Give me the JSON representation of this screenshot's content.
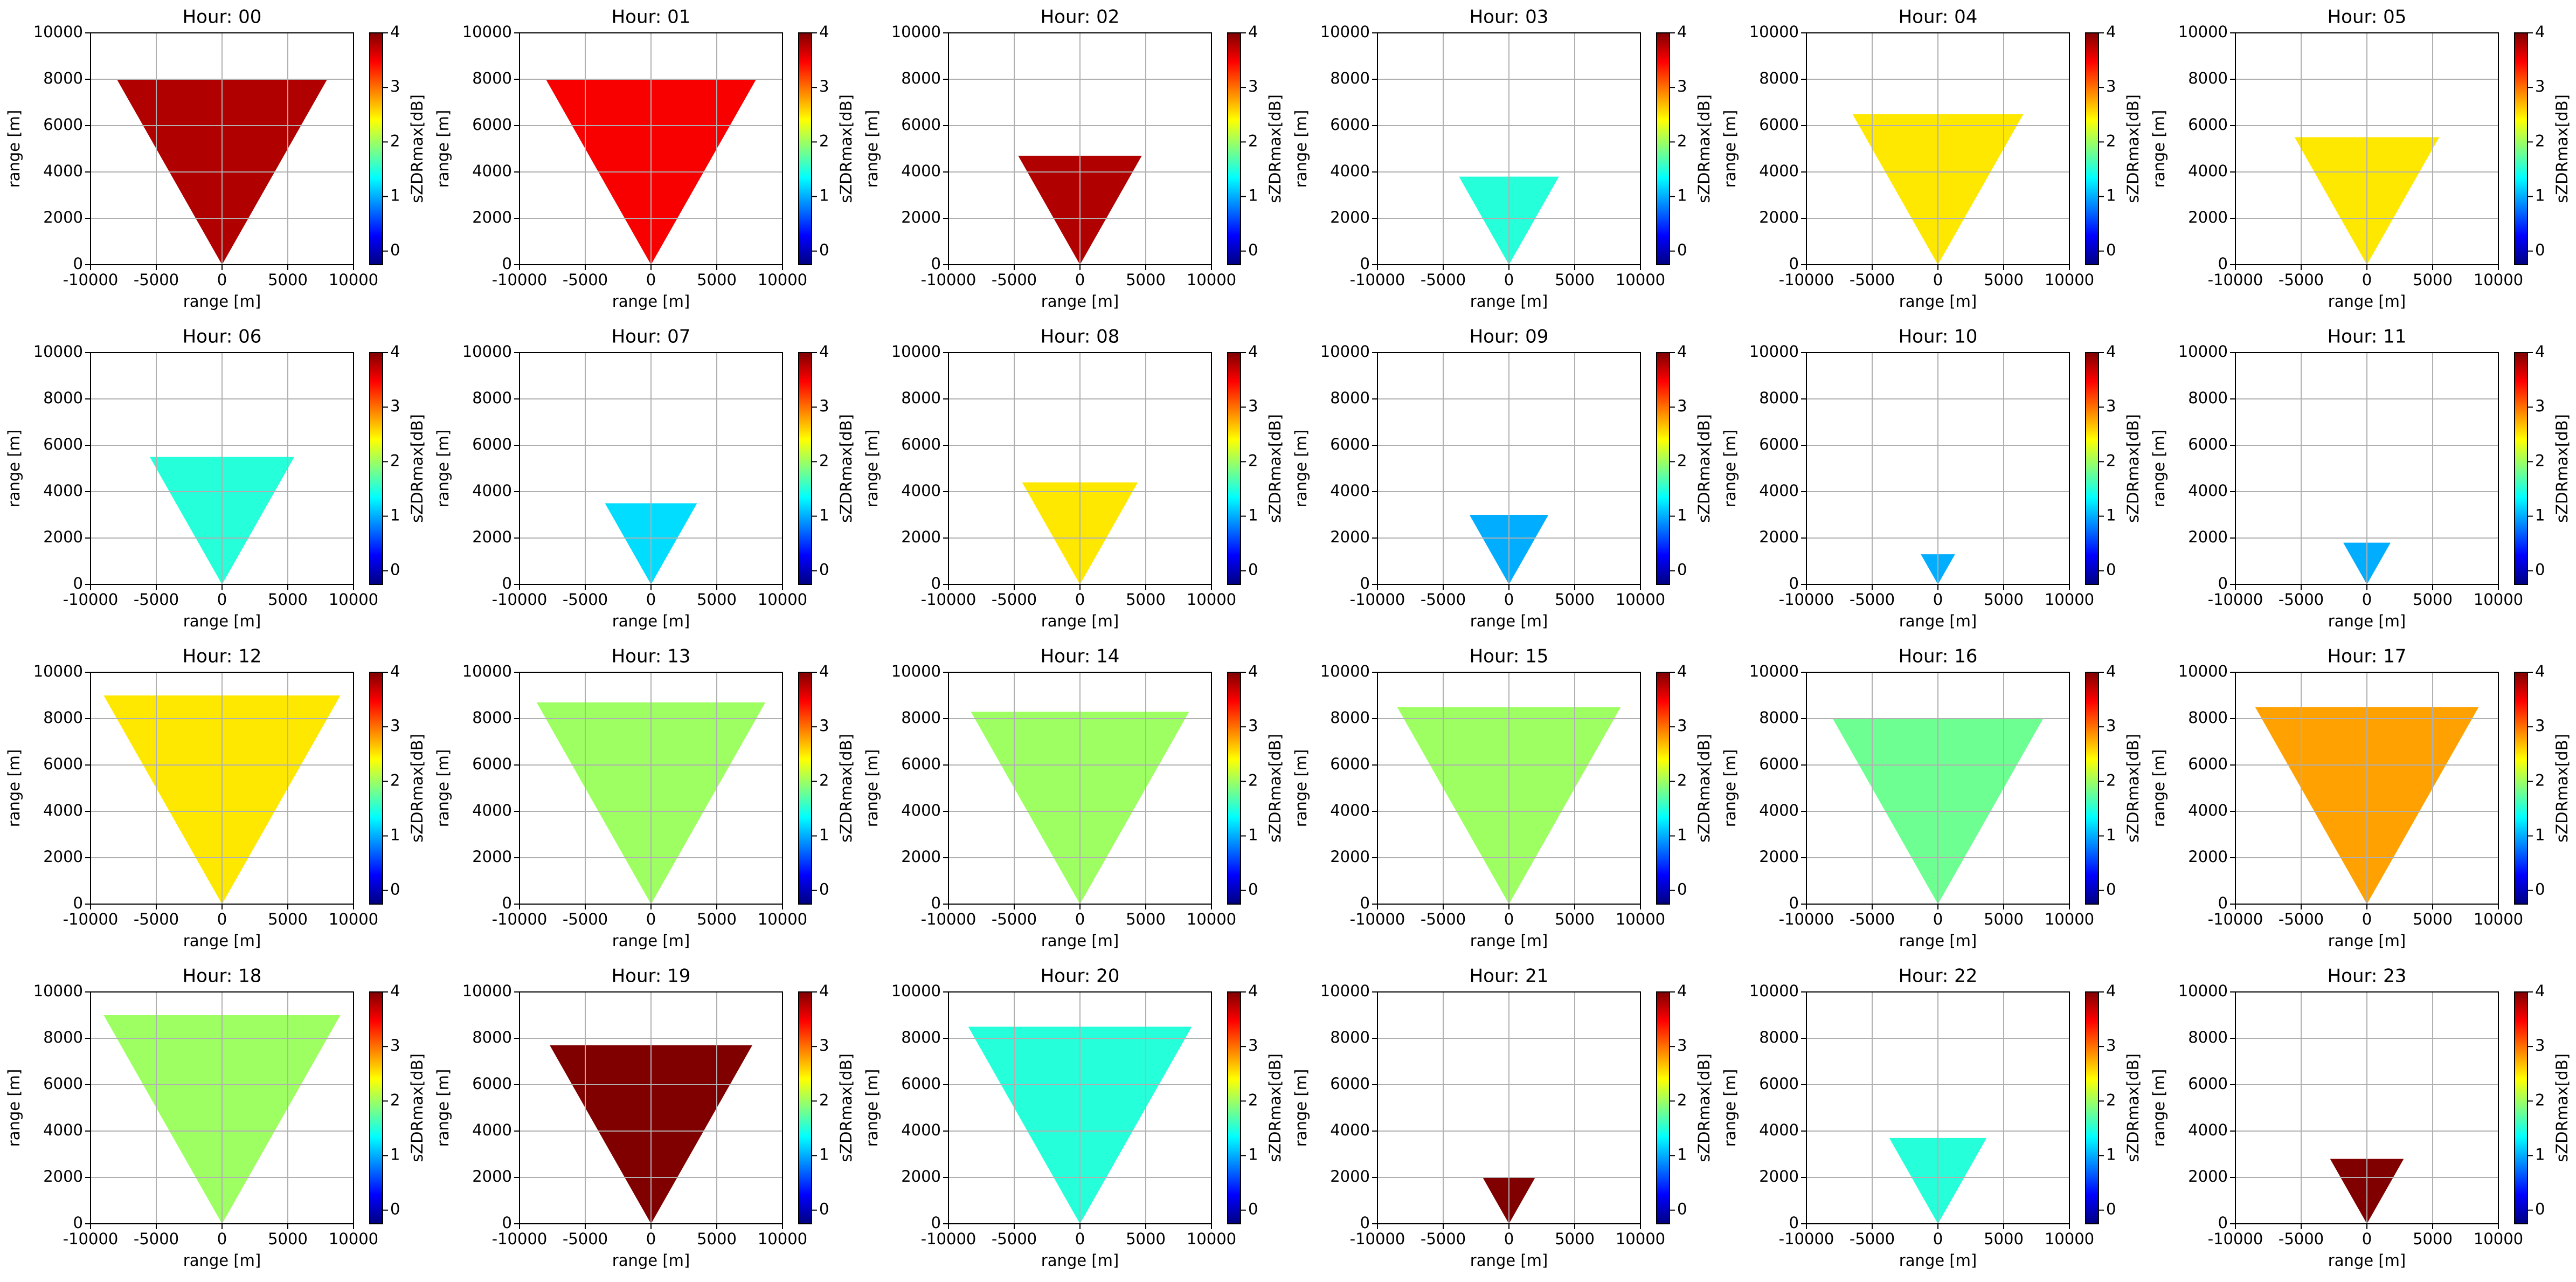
{
  "chart_data": [
    {
      "type": "radar",
      "title": "Hour: 00",
      "xlabel": "range [m]",
      "ylabel": "range [m]",
      "colorbar_label": "sZDRmax[dB]",
      "xlim": [
        -10000,
        10000
      ],
      "ylim": [
        0,
        10000
      ],
      "xticks": [
        -10000,
        -5000,
        0,
        5000,
        10000
      ],
      "yticks": [
        0,
        2000,
        4000,
        6000,
        8000,
        10000
      ],
      "clim": [
        -0.25,
        4
      ],
      "cticks": [
        0,
        1,
        2,
        3,
        4
      ],
      "grid": true,
      "colormap": "jet",
      "echo_top": 8000,
      "median": 3.8
    },
    {
      "type": "radar",
      "title": "Hour: 01",
      "xlabel": "range [m]",
      "ylabel": "range [m]",
      "colorbar_label": "sZDRmax[dB]",
      "xlim": [
        -10000,
        10000
      ],
      "ylim": [
        0,
        10000
      ],
      "xticks": [
        -10000,
        -5000,
        0,
        5000,
        10000
      ],
      "yticks": [
        0,
        2000,
        4000,
        6000,
        8000,
        10000
      ],
      "clim": [
        -0.25,
        4
      ],
      "cticks": [
        0,
        1,
        2,
        3,
        4
      ],
      "grid": true,
      "colormap": "jet",
      "echo_top": 8000,
      "median": 3.5
    },
    {
      "type": "radar",
      "title": "Hour: 02",
      "xlabel": "range [m]",
      "ylabel": "range [m]",
      "colorbar_label": "sZDRmax[dB]",
      "xlim": [
        -10000,
        10000
      ],
      "ylim": [
        0,
        10000
      ],
      "xticks": [
        -10000,
        -5000,
        0,
        5000,
        10000
      ],
      "yticks": [
        0,
        2000,
        4000,
        6000,
        8000,
        10000
      ],
      "clim": [
        -0.25,
        4
      ],
      "cticks": [
        0,
        1,
        2,
        3,
        4
      ],
      "grid": true,
      "colormap": "jet",
      "echo_top": 4700,
      "median": 3.8
    },
    {
      "type": "radar",
      "title": "Hour: 03",
      "xlabel": "range [m]",
      "ylabel": "range [m]",
      "colorbar_label": "sZDRmax[dB]",
      "xlim": [
        -10000,
        10000
      ],
      "ylim": [
        0,
        10000
      ],
      "xticks": [
        -10000,
        -5000,
        0,
        5000,
        10000
      ],
      "yticks": [
        0,
        2000,
        4000,
        6000,
        8000,
        10000
      ],
      "clim": [
        -0.25,
        4
      ],
      "cticks": [
        0,
        1,
        2,
        3,
        4
      ],
      "grid": true,
      "colormap": "jet",
      "echo_top": 3800,
      "median": 1.5
    },
    {
      "type": "radar",
      "title": "Hour: 04",
      "xlabel": "range [m]",
      "ylabel": "range [m]",
      "colorbar_label": "sZDRmax[dB]",
      "xlim": [
        -10000,
        10000
      ],
      "ylim": [
        0,
        10000
      ],
      "xticks": [
        -10000,
        -5000,
        0,
        5000,
        10000
      ],
      "yticks": [
        0,
        2000,
        4000,
        6000,
        8000,
        10000
      ],
      "clim": [
        -0.25,
        4
      ],
      "cticks": [
        0,
        1,
        2,
        3,
        4
      ],
      "grid": true,
      "colormap": "jet",
      "echo_top": 6500,
      "median": 2.5
    },
    {
      "type": "radar",
      "title": "Hour: 05",
      "xlabel": "range [m]",
      "ylabel": "range [m]",
      "colorbar_label": "sZDRmax[dB]",
      "xlim": [
        -10000,
        10000
      ],
      "ylim": [
        0,
        10000
      ],
      "xticks": [
        -10000,
        -5000,
        0,
        5000,
        10000
      ],
      "yticks": [
        0,
        2000,
        4000,
        6000,
        8000,
        10000
      ],
      "clim": [
        -0.25,
        4
      ],
      "cticks": [
        0,
        1,
        2,
        3,
        4
      ],
      "grid": true,
      "colormap": "jet",
      "echo_top": 5500,
      "median": 2.5
    },
    {
      "type": "radar",
      "title": "Hour: 06",
      "xlabel": "range [m]",
      "ylabel": "range [m]",
      "colorbar_label": "sZDRmax[dB]",
      "xlim": [
        -10000,
        10000
      ],
      "ylim": [
        0,
        10000
      ],
      "xticks": [
        -10000,
        -5000,
        0,
        5000,
        10000
      ],
      "yticks": [
        0,
        2000,
        4000,
        6000,
        8000,
        10000
      ],
      "clim": [
        -0.25,
        4
      ],
      "cticks": [
        0,
        1,
        2,
        3,
        4
      ],
      "grid": true,
      "colormap": "jet",
      "echo_top": 5500,
      "median": 1.5
    },
    {
      "type": "radar",
      "title": "Hour: 07",
      "xlabel": "range [m]",
      "ylabel": "range [m]",
      "colorbar_label": "sZDRmax[dB]",
      "xlim": [
        -10000,
        10000
      ],
      "ylim": [
        0,
        10000
      ],
      "xticks": [
        -10000,
        -5000,
        0,
        5000,
        10000
      ],
      "yticks": [
        0,
        2000,
        4000,
        6000,
        8000,
        10000
      ],
      "clim": [
        -0.25,
        4
      ],
      "cticks": [
        0,
        1,
        2,
        3,
        4
      ],
      "grid": true,
      "colormap": "jet",
      "echo_top": 3500,
      "median": 1.2
    },
    {
      "type": "radar",
      "title": "Hour: 08",
      "xlabel": "range [m]",
      "ylabel": "range [m]",
      "colorbar_label": "sZDRmax[dB]",
      "xlim": [
        -10000,
        10000
      ],
      "ylim": [
        0,
        10000
      ],
      "xticks": [
        -10000,
        -5000,
        0,
        5000,
        10000
      ],
      "yticks": [
        0,
        2000,
        4000,
        6000,
        8000,
        10000
      ],
      "clim": [
        -0.25,
        4
      ],
      "cticks": [
        0,
        1,
        2,
        3,
        4
      ],
      "grid": true,
      "colormap": "jet",
      "echo_top": 4400,
      "median": 2.5
    },
    {
      "type": "radar",
      "title": "Hour: 09",
      "xlabel": "range [m]",
      "ylabel": "range [m]",
      "colorbar_label": "sZDRmax[dB]",
      "xlim": [
        -10000,
        10000
      ],
      "ylim": [
        0,
        10000
      ],
      "xticks": [
        -10000,
        -5000,
        0,
        5000,
        10000
      ],
      "yticks": [
        0,
        2000,
        4000,
        6000,
        8000,
        10000
      ],
      "clim": [
        -0.25,
        4
      ],
      "cticks": [
        0,
        1,
        2,
        3,
        4
      ],
      "grid": true,
      "colormap": "jet",
      "echo_top": 3000,
      "median": 1.0
    },
    {
      "type": "radar",
      "title": "Hour: 10",
      "xlabel": "range [m]",
      "ylabel": "range [m]",
      "colorbar_label": "sZDRmax[dB]",
      "xlim": [
        -10000,
        10000
      ],
      "ylim": [
        0,
        10000
      ],
      "xticks": [
        -10000,
        -5000,
        0,
        5000,
        10000
      ],
      "yticks": [
        0,
        2000,
        4000,
        6000,
        8000,
        10000
      ],
      "clim": [
        -0.25,
        4
      ],
      "cticks": [
        0,
        1,
        2,
        3,
        4
      ],
      "grid": true,
      "colormap": "jet",
      "echo_top": 1300,
      "median": 1.0
    },
    {
      "type": "radar",
      "title": "Hour: 11",
      "xlabel": "range [m]",
      "ylabel": "range [m]",
      "colorbar_label": "sZDRmax[dB]",
      "xlim": [
        -10000,
        10000
      ],
      "ylim": [
        0,
        10000
      ],
      "xticks": [
        -10000,
        -5000,
        0,
        5000,
        10000
      ],
      "yticks": [
        0,
        2000,
        4000,
        6000,
        8000,
        10000
      ],
      "clim": [
        -0.25,
        4
      ],
      "cticks": [
        0,
        1,
        2,
        3,
        4
      ],
      "grid": true,
      "colormap": "jet",
      "echo_top": 1800,
      "median": 1.0
    },
    {
      "type": "radar",
      "title": "Hour: 12",
      "xlabel": "range [m]",
      "ylabel": "range [m]",
      "colorbar_label": "sZDRmax[dB]",
      "xlim": [
        -10000,
        10000
      ],
      "ylim": [
        0,
        10000
      ],
      "xticks": [
        -10000,
        -5000,
        0,
        5000,
        10000
      ],
      "yticks": [
        0,
        2000,
        4000,
        6000,
        8000,
        10000
      ],
      "clim": [
        -0.25,
        4
      ],
      "cticks": [
        0,
        1,
        2,
        3,
        4
      ],
      "grid": true,
      "colormap": "jet",
      "echo_top": 9000,
      "median": 2.5
    },
    {
      "type": "radar",
      "title": "Hour: 13",
      "xlabel": "range [m]",
      "ylabel": "range [m]",
      "colorbar_label": "sZDRmax[dB]",
      "xlim": [
        -10000,
        10000
      ],
      "ylim": [
        0,
        10000
      ],
      "xticks": [
        -10000,
        -5000,
        0,
        5000,
        10000
      ],
      "yticks": [
        0,
        2000,
        4000,
        6000,
        8000,
        10000
      ],
      "clim": [
        -0.25,
        4
      ],
      "cticks": [
        0,
        1,
        2,
        3,
        4
      ],
      "grid": true,
      "colormap": "jet",
      "echo_top": 8700,
      "median": 2.0
    },
    {
      "type": "radar",
      "title": "Hour: 14",
      "xlabel": "range [m]",
      "ylabel": "range [m]",
      "colorbar_label": "sZDRmax[dB]",
      "xlim": [
        -10000,
        10000
      ],
      "ylim": [
        0,
        10000
      ],
      "xticks": [
        -10000,
        -5000,
        0,
        5000,
        10000
      ],
      "yticks": [
        0,
        2000,
        4000,
        6000,
        8000,
        10000
      ],
      "clim": [
        -0.25,
        4
      ],
      "cticks": [
        0,
        1,
        2,
        3,
        4
      ],
      "grid": true,
      "colormap": "jet",
      "echo_top": 8300,
      "median": 2.0
    },
    {
      "type": "radar",
      "title": "Hour: 15",
      "xlabel": "range [m]",
      "ylabel": "range [m]",
      "colorbar_label": "sZDRmax[dB]",
      "xlim": [
        -10000,
        10000
      ],
      "ylim": [
        0,
        10000
      ],
      "xticks": [
        -10000,
        -5000,
        0,
        5000,
        10000
      ],
      "yticks": [
        0,
        2000,
        4000,
        6000,
        8000,
        10000
      ],
      "clim": [
        -0.25,
        4
      ],
      "cticks": [
        0,
        1,
        2,
        3,
        4
      ],
      "grid": true,
      "colormap": "jet",
      "echo_top": 8500,
      "median": 2.0
    },
    {
      "type": "radar",
      "title": "Hour: 16",
      "xlabel": "range [m]",
      "ylabel": "range [m]",
      "colorbar_label": "sZDRmax[dB]",
      "xlim": [
        -10000,
        10000
      ],
      "ylim": [
        0,
        10000
      ],
      "xticks": [
        -10000,
        -5000,
        0,
        5000,
        10000
      ],
      "yticks": [
        0,
        2000,
        4000,
        6000,
        8000,
        10000
      ],
      "clim": [
        -0.25,
        4
      ],
      "cticks": [
        0,
        1,
        2,
        3,
        4
      ],
      "grid": true,
      "colormap": "jet",
      "echo_top": 8000,
      "median": 1.8
    },
    {
      "type": "radar",
      "title": "Hour: 17",
      "xlabel": "range [m]",
      "ylabel": "range [m]",
      "colorbar_label": "sZDRmax[dB]",
      "xlim": [
        -10000,
        10000
      ],
      "ylim": [
        0,
        10000
      ],
      "xticks": [
        -10000,
        -5000,
        0,
        5000,
        10000
      ],
      "yticks": [
        0,
        2000,
        4000,
        6000,
        8000,
        10000
      ],
      "clim": [
        -0.25,
        4
      ],
      "cticks": [
        0,
        1,
        2,
        3,
        4
      ],
      "grid": true,
      "colormap": "jet",
      "echo_top": 8500,
      "median": 2.8
    },
    {
      "type": "radar",
      "title": "Hour: 18",
      "xlabel": "range [m]",
      "ylabel": "range [m]",
      "colorbar_label": "sZDRmax[dB]",
      "xlim": [
        -10000,
        10000
      ],
      "ylim": [
        0,
        10000
      ],
      "xticks": [
        -10000,
        -5000,
        0,
        5000,
        10000
      ],
      "yticks": [
        0,
        2000,
        4000,
        6000,
        8000,
        10000
      ],
      "clim": [
        -0.25,
        4
      ],
      "cticks": [
        0,
        1,
        2,
        3,
        4
      ],
      "grid": true,
      "colormap": "jet",
      "echo_top": 9000,
      "median": 2.0
    },
    {
      "type": "radar",
      "title": "Hour: 19",
      "xlabel": "range [m]",
      "ylabel": "range [m]",
      "colorbar_label": "sZDRmax[dB]",
      "xlim": [
        -10000,
        10000
      ],
      "ylim": [
        0,
        10000
      ],
      "xticks": [
        -10000,
        -5000,
        0,
        5000,
        10000
      ],
      "yticks": [
        0,
        2000,
        4000,
        6000,
        8000,
        10000
      ],
      "clim": [
        -0.25,
        4
      ],
      "cticks": [
        0,
        1,
        2,
        3,
        4
      ],
      "grid": true,
      "colormap": "jet",
      "echo_top": 7700,
      "median": 4.0
    },
    {
      "type": "radar",
      "title": "Hour: 20",
      "xlabel": "range [m]",
      "ylabel": "range [m]",
      "colorbar_label": "sZDRmax[dB]",
      "xlim": [
        -10000,
        10000
      ],
      "ylim": [
        0,
        10000
      ],
      "xticks": [
        -10000,
        -5000,
        0,
        5000,
        10000
      ],
      "yticks": [
        0,
        2000,
        4000,
        6000,
        8000,
        10000
      ],
      "clim": [
        -0.25,
        4
      ],
      "cticks": [
        0,
        1,
        2,
        3,
        4
      ],
      "grid": true,
      "colormap": "jet",
      "echo_top": 8500,
      "median": 1.5
    },
    {
      "type": "radar",
      "title": "Hour: 21",
      "xlabel": "range [m]",
      "ylabel": "range [m]",
      "colorbar_label": "sZDRmax[dB]",
      "xlim": [
        -10000,
        10000
      ],
      "ylim": [
        0,
        10000
      ],
      "xticks": [
        -10000,
        -5000,
        0,
        5000,
        10000
      ],
      "yticks": [
        0,
        2000,
        4000,
        6000,
        8000,
        10000
      ],
      "clim": [
        -0.25,
        4
      ],
      "cticks": [
        0,
        1,
        2,
        3,
        4
      ],
      "grid": true,
      "colormap": "jet",
      "echo_top": 2000,
      "median": 4.0
    },
    {
      "type": "radar",
      "title": "Hour: 22",
      "xlabel": "range [m]",
      "ylabel": "range [m]",
      "colorbar_label": "sZDRmax[dB]",
      "xlim": [
        -10000,
        10000
      ],
      "ylim": [
        0,
        10000
      ],
      "xticks": [
        -10000,
        -5000,
        0,
        5000,
        10000
      ],
      "yticks": [
        0,
        2000,
        4000,
        6000,
        8000,
        10000
      ],
      "clim": [
        -0.25,
        4
      ],
      "cticks": [
        0,
        1,
        2,
        3,
        4
      ],
      "grid": true,
      "colormap": "jet",
      "echo_top": 3700,
      "median": 1.5
    },
    {
      "type": "radar",
      "title": "Hour: 23",
      "xlabel": "range [m]",
      "ylabel": "range [m]",
      "colorbar_label": "sZDRmax[dB]",
      "xlim": [
        -10000,
        10000
      ],
      "ylim": [
        0,
        10000
      ],
      "xticks": [
        -10000,
        -5000,
        0,
        5000,
        10000
      ],
      "yticks": [
        0,
        2000,
        4000,
        6000,
        8000,
        10000
      ],
      "clim": [
        -0.25,
        4
      ],
      "cticks": [
        0,
        1,
        2,
        3,
        4
      ],
      "grid": true,
      "colormap": "jet",
      "echo_top": 2800,
      "median": 4.0
    }
  ]
}
